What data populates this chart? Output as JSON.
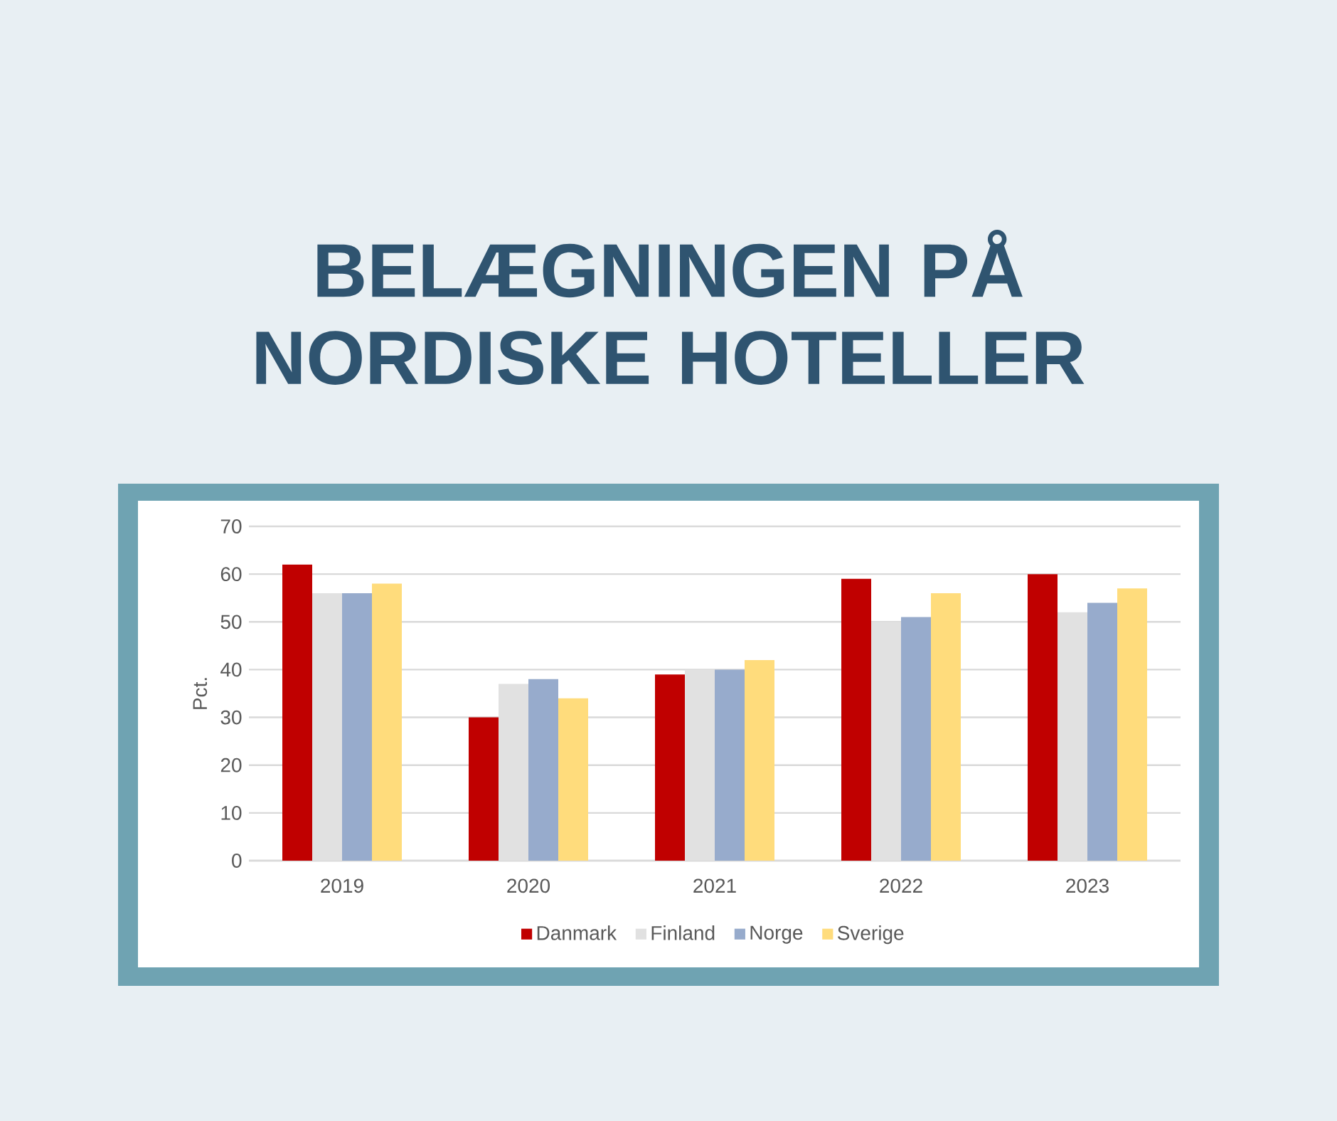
{
  "chart_data": {
    "type": "bar",
    "title": "BELÆGNINGEN PÅ NORDISKE HOTELLER",
    "ylabel": "Pct.",
    "categories": [
      "2019",
      "2020",
      "2021",
      "2022",
      "2023"
    ],
    "series": [
      {
        "name": "Danmark",
        "color": "#c00000",
        "values": [
          62,
          30,
          39,
          59,
          60
        ]
      },
      {
        "name": "Finland",
        "color": "#e1e1e1",
        "values": [
          56,
          37,
          40,
          50,
          52
        ]
      },
      {
        "name": "Norge",
        "color": "#97abcc",
        "values": [
          56,
          38,
          40,
          51,
          54
        ]
      },
      {
        "name": "Sverige",
        "color": "#ffdc7c",
        "values": [
          58,
          34,
          42,
          56,
          57
        ]
      }
    ],
    "ylim": [
      0,
      70
    ],
    "yticks": [
      0,
      10,
      20,
      30,
      40,
      50,
      60,
      70
    ],
    "grid": "y",
    "legend": "bottom"
  }
}
